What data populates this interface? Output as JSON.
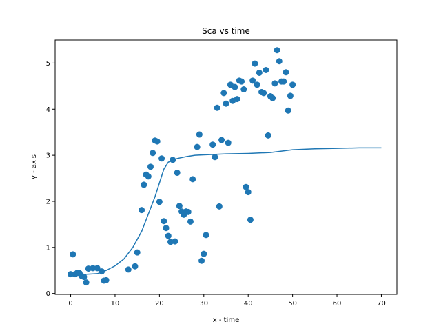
{
  "chart_data": {
    "type": "scatter",
    "title": "Sca vs time",
    "xlabel": "x - time",
    "ylabel": "y - axis",
    "xlim": [
      -3.5,
      73.5
    ],
    "ylim": [
      -0.02,
      5.5
    ],
    "xticks": [
      0,
      10,
      20,
      30,
      40,
      50,
      60,
      70
    ],
    "yticks": [
      0,
      1,
      2,
      3,
      4,
      5
    ],
    "grid": false,
    "color": "#1f77b4",
    "series": [
      {
        "type": "scatter",
        "points": [
          [
            0,
            0.42
          ],
          [
            0.5,
            0.85
          ],
          [
            1,
            0.42
          ],
          [
            1.5,
            0.45
          ],
          [
            2,
            0.44
          ],
          [
            2.5,
            0.38
          ],
          [
            3,
            0.36
          ],
          [
            3.5,
            0.24
          ],
          [
            4,
            0.54
          ],
          [
            5,
            0.55
          ],
          [
            6,
            0.55
          ],
          [
            7,
            0.48
          ],
          [
            7.5,
            0.28
          ],
          [
            8,
            0.29
          ],
          [
            13,
            0.52
          ],
          [
            14.5,
            0.59
          ],
          [
            15,
            0.89
          ],
          [
            16,
            1.81
          ],
          [
            16.5,
            2.36
          ],
          [
            17,
            2.58
          ],
          [
            17.5,
            2.54
          ],
          [
            18,
            2.75
          ],
          [
            18.5,
            3.05
          ],
          [
            19,
            3.32
          ],
          [
            19.5,
            3.3
          ],
          [
            20,
            1.99
          ],
          [
            20.5,
            2.93
          ],
          [
            21,
            1.57
          ],
          [
            21.5,
            1.42
          ],
          [
            22,
            1.25
          ],
          [
            22.5,
            1.12
          ],
          [
            23,
            2.9
          ],
          [
            23.5,
            1.13
          ],
          [
            24,
            2.62
          ],
          [
            24.5,
            1.9
          ],
          [
            25,
            1.78
          ],
          [
            25.5,
            1.71
          ],
          [
            26,
            1.78
          ],
          [
            26.5,
            1.77
          ],
          [
            27,
            1.56
          ],
          [
            27.5,
            2.48
          ],
          [
            28.5,
            3.18
          ],
          [
            29,
            3.45
          ],
          [
            29.5,
            0.71
          ],
          [
            30,
            0.86
          ],
          [
            30.5,
            1.27
          ],
          [
            32,
            3.23
          ],
          [
            32.5,
            2.96
          ],
          [
            33,
            4.03
          ],
          [
            33.5,
            1.89
          ],
          [
            34,
            3.33
          ],
          [
            34.5,
            4.35
          ],
          [
            35,
            4.12
          ],
          [
            35.5,
            3.27
          ],
          [
            36,
            4.53
          ],
          [
            36.5,
            4.18
          ],
          [
            37,
            4.48
          ],
          [
            37.5,
            4.22
          ],
          [
            38,
            4.62
          ],
          [
            38.5,
            4.6
          ],
          [
            39,
            4.43
          ],
          [
            39.5,
            2.31
          ],
          [
            40,
            2.2
          ],
          [
            40.5,
            1.6
          ],
          [
            41,
            4.62
          ],
          [
            41.5,
            4.99
          ],
          [
            42,
            4.53
          ],
          [
            42.5,
            4.79
          ],
          [
            43,
            4.37
          ],
          [
            43.5,
            4.35
          ],
          [
            44,
            4.85
          ],
          [
            44.5,
            3.43
          ],
          [
            45,
            4.28
          ],
          [
            45.5,
            4.24
          ],
          [
            46,
            4.56
          ],
          [
            46.5,
            5.28
          ],
          [
            47,
            5.04
          ],
          [
            47.5,
            4.6
          ],
          [
            48,
            4.6
          ],
          [
            48.5,
            4.8
          ],
          [
            49,
            3.97
          ],
          [
            49.5,
            4.29
          ],
          [
            50,
            4.53
          ]
        ]
      },
      {
        "type": "line",
        "points": [
          [
            0,
            0.4
          ],
          [
            2,
            0.41
          ],
          [
            4,
            0.42
          ],
          [
            6,
            0.43
          ],
          [
            8,
            0.5
          ],
          [
            10,
            0.6
          ],
          [
            12,
            0.75
          ],
          [
            14,
            1.0
          ],
          [
            16,
            1.35
          ],
          [
            17,
            1.6
          ],
          [
            18,
            1.85
          ],
          [
            19,
            2.1
          ],
          [
            20,
            2.4
          ],
          [
            21,
            2.7
          ],
          [
            22,
            2.85
          ],
          [
            24,
            2.93
          ],
          [
            26,
            2.97
          ],
          [
            28,
            3.0
          ],
          [
            30,
            3.01
          ],
          [
            35,
            3.03
          ],
          [
            40,
            3.04
          ],
          [
            45,
            3.06
          ],
          [
            50,
            3.12
          ],
          [
            55,
            3.14
          ],
          [
            60,
            3.15
          ],
          [
            65,
            3.16
          ],
          [
            70,
            3.16
          ]
        ]
      }
    ]
  }
}
